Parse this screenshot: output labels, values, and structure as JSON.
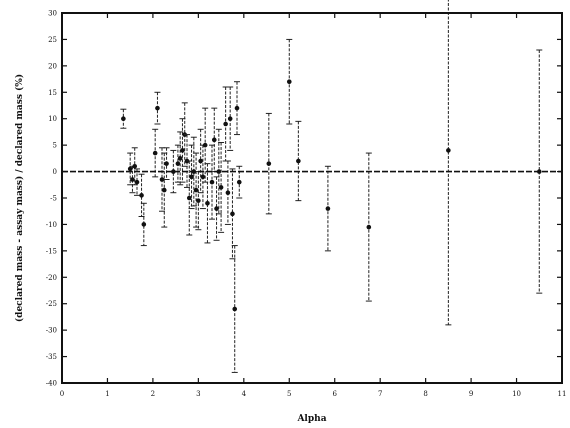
{
  "chart_data": {
    "type": "scatter",
    "title": "",
    "xlabel": "Alpha",
    "ylabel": "(declared mass - assay mass) / declared mass (%)",
    "xlim": [
      0,
      11
    ],
    "ylim": [
      -40,
      30
    ],
    "x_ticks": [
      0,
      1,
      2,
      3,
      4,
      5,
      6,
      7,
      8,
      9,
      10,
      11
    ],
    "x_tick_labels": [
      "0",
      "1",
      "2",
      "3",
      "4",
      "5",
      "6",
      "7",
      "8",
      "9",
      "10",
      "11"
    ],
    "y_ticks": [
      -40,
      -35,
      -30,
      -25,
      -20,
      -15,
      -10,
      -5,
      0,
      5,
      10,
      15,
      20,
      25,
      30
    ],
    "y_tick_labels": [
      "-40",
      "-35",
      "-30",
      "-25",
      "-20",
      "-15",
      "-10",
      "-5",
      "0",
      "5",
      "10",
      "15",
      "20",
      "25",
      "30"
    ],
    "grid": false,
    "reference_line_y": 0,
    "series": [
      {
        "points": [
          {
            "x": 1.35,
            "y": 10.0,
            "err": 1.8
          },
          {
            "x": 1.5,
            "y": 0.5,
            "err": 3.0
          },
          {
            "x": 1.55,
            "y": -1.5,
            "err": 2.5
          },
          {
            "x": 1.6,
            "y": 1.0,
            "err": 3.5
          },
          {
            "x": 1.65,
            "y": -2.0,
            "err": 2.5
          },
          {
            "x": 1.75,
            "y": -4.5,
            "err": 4.0
          },
          {
            "x": 1.8,
            "y": -10.0,
            "err": 4.0
          },
          {
            "x": 2.05,
            "y": 3.5,
            "err": 4.5
          },
          {
            "x": 2.1,
            "y": 12.0,
            "err": 3.0
          },
          {
            "x": 2.2,
            "y": -1.5,
            "err": 6.0
          },
          {
            "x": 2.25,
            "y": -3.5,
            "err": 7.0
          },
          {
            "x": 2.3,
            "y": 1.5,
            "err": 3.0
          },
          {
            "x": 2.45,
            "y": 0.0,
            "err": 4.0
          },
          {
            "x": 2.55,
            "y": 1.5,
            "err": 3.5
          },
          {
            "x": 2.6,
            "y": 2.5,
            "err": 5.0
          },
          {
            "x": 2.65,
            "y": 4.0,
            "err": 6.0
          },
          {
            "x": 2.7,
            "y": 7.0,
            "err": 6.0
          },
          {
            "x": 2.75,
            "y": 2.0,
            "err": 5.0
          },
          {
            "x": 2.8,
            "y": -5.0,
            "err": 7.0
          },
          {
            "x": 2.85,
            "y": -1.0,
            "err": 6.0
          },
          {
            "x": 2.9,
            "y": 0.0,
            "err": 6.5
          },
          {
            "x": 2.95,
            "y": -3.5,
            "err": 7.0
          },
          {
            "x": 3.0,
            "y": -5.5,
            "err": 5.5
          },
          {
            "x": 3.05,
            "y": 2.0,
            "err": 6.0
          },
          {
            "x": 3.1,
            "y": -1.0,
            "err": 6.0
          },
          {
            "x": 3.15,
            "y": 5.0,
            "err": 7.0
          },
          {
            "x": 3.2,
            "y": -6.0,
            "err": 7.5
          },
          {
            "x": 3.3,
            "y": -2.0,
            "err": 7.0
          },
          {
            "x": 3.35,
            "y": 6.0,
            "err": 6.0
          },
          {
            "x": 3.4,
            "y": -7.0,
            "err": 6.0
          },
          {
            "x": 3.45,
            "y": 0.0,
            "err": 8.0
          },
          {
            "x": 3.5,
            "y": -3.0,
            "err": 8.5
          },
          {
            "x": 3.6,
            "y": 9.0,
            "err": 7.0
          },
          {
            "x": 3.65,
            "y": -4.0,
            "err": 6.0
          },
          {
            "x": 3.7,
            "y": 10.0,
            "err": 6.0
          },
          {
            "x": 3.75,
            "y": -8.0,
            "err": 8.5
          },
          {
            "x": 3.8,
            "y": -26.0,
            "err": 12.0
          },
          {
            "x": 3.85,
            "y": 12.0,
            "err": 5.0
          },
          {
            "x": 3.9,
            "y": -2.0,
            "err": 3.0
          },
          {
            "x": 4.55,
            "y": 1.5,
            "err": 9.5
          },
          {
            "x": 5.0,
            "y": 17.0,
            "err": 8.0
          },
          {
            "x": 5.2,
            "y": 2.0,
            "err": 7.5
          },
          {
            "x": 5.85,
            "y": -7.0,
            "err": 8.0
          },
          {
            "x": 6.75,
            "y": -10.5,
            "err": 14.0
          },
          {
            "x": 8.5,
            "y": 4.0,
            "err": 33.0
          },
          {
            "x": 10.5,
            "y": 0.0,
            "err": 23.0
          }
        ]
      }
    ]
  }
}
